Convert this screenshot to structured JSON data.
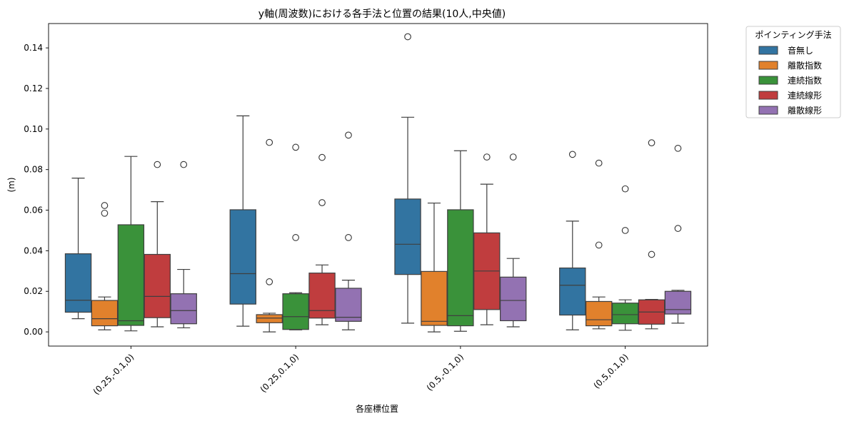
{
  "chart_data": {
    "type": "box",
    "title": "y軸(周波数)における各手法と位置の結果(10人,中央値)",
    "xlabel": "各座標位置",
    "ylabel": "(m)",
    "ylim": [
      -0.007,
      0.152
    ],
    "yticks": [
      0.0,
      0.02,
      0.04,
      0.06,
      0.08,
      0.1,
      0.12,
      0.14
    ],
    "ytick_labels": [
      "0.00",
      "0.02",
      "0.04",
      "0.06",
      "0.08",
      "0.10",
      "0.12",
      "0.14"
    ],
    "categories": [
      "(0.25,-0.1,0)",
      "(0.25,0.1,0)",
      "(0.5,-0.1,0)",
      "(0.5,0.1,0)"
    ],
    "legend": {
      "title": "ポインティング手法",
      "position": "outside-top-right"
    },
    "series": [
      {
        "name": "音無し",
        "color": "#3274a1",
        "boxes": [
          {
            "whislo": 0.0065,
            "q1": 0.0097,
            "med": 0.0156,
            "q3": 0.0385,
            "whishi": 0.0758,
            "fliers": []
          },
          {
            "whislo": 0.0028,
            "q1": 0.0137,
            "med": 0.0287,
            "q3": 0.0602,
            "whishi": 0.1065,
            "fliers": []
          },
          {
            "whislo": 0.0043,
            "q1": 0.0283,
            "med": 0.0432,
            "q3": 0.0655,
            "whishi": 0.1058,
            "fliers": [
              0.1455
            ]
          },
          {
            "whislo": 0.001,
            "q1": 0.0083,
            "med": 0.023,
            "q3": 0.0315,
            "whishi": 0.0546,
            "fliers": [
              0.0875
            ]
          }
        ]
      },
      {
        "name": "離散指数",
        "color": "#e1812c",
        "boxes": [
          {
            "whislo": 0.001,
            "q1": 0.003,
            "med": 0.0065,
            "q3": 0.0155,
            "whishi": 0.0172,
            "fliers": [
              0.0585,
              0.0623
            ]
          },
          {
            "whislo": 0.0,
            "q1": 0.0045,
            "med": 0.0068,
            "q3": 0.0085,
            "whishi": 0.0092,
            "fliers": [
              0.0247,
              0.0934
            ]
          },
          {
            "whislo": 0.0,
            "q1": 0.0032,
            "med": 0.0052,
            "q3": 0.0298,
            "whishi": 0.0635,
            "fliers": []
          },
          {
            "whislo": 0.0015,
            "q1": 0.003,
            "med": 0.006,
            "q3": 0.015,
            "whishi": 0.0172,
            "fliers": [
              0.0428,
              0.0832
            ]
          }
        ]
      },
      {
        "name": "連続指数",
        "color": "#3a923a",
        "boxes": [
          {
            "whislo": 0.0005,
            "q1": 0.0032,
            "med": 0.0055,
            "q3": 0.0528,
            "whishi": 0.0865,
            "fliers": []
          },
          {
            "whislo": 0.001,
            "q1": 0.0012,
            "med": 0.0075,
            "q3": 0.0188,
            "whishi": 0.0193,
            "fliers": [
              0.0465,
              0.091
            ]
          },
          {
            "whislo": 0.0003,
            "q1": 0.003,
            "med": 0.008,
            "q3": 0.0602,
            "whishi": 0.0893,
            "fliers": []
          },
          {
            "whislo": 0.0008,
            "q1": 0.004,
            "med": 0.0085,
            "q3": 0.0142,
            "whishi": 0.0158,
            "fliers": [
              0.05,
              0.0705
            ]
          }
        ]
      },
      {
        "name": "連続線形",
        "color": "#c03d3e",
        "boxes": [
          {
            "whislo": 0.0025,
            "q1": 0.007,
            "med": 0.0175,
            "q3": 0.0382,
            "whishi": 0.0642,
            "fliers": [
              0.0825
            ]
          },
          {
            "whislo": 0.0035,
            "q1": 0.0068,
            "med": 0.0105,
            "q3": 0.029,
            "whishi": 0.033,
            "fliers": [
              0.0637,
              0.086
            ]
          },
          {
            "whislo": 0.0035,
            "q1": 0.011,
            "med": 0.03,
            "q3": 0.0488,
            "whishi": 0.0728,
            "fliers": [
              0.0862
            ]
          },
          {
            "whislo": 0.0015,
            "q1": 0.0038,
            "med": 0.0098,
            "q3": 0.0158,
            "whishi": 0.016,
            "fliers": [
              0.0382,
              0.0932
            ]
          }
        ]
      },
      {
        "name": "離散線形",
        "color": "#9372b2",
        "boxes": [
          {
            "whislo": 0.002,
            "q1": 0.004,
            "med": 0.0105,
            "q3": 0.0188,
            "whishi": 0.0308,
            "fliers": [
              0.0825
            ]
          },
          {
            "whislo": 0.001,
            "q1": 0.0052,
            "med": 0.0072,
            "q3": 0.0215,
            "whishi": 0.0255,
            "fliers": [
              0.0465,
              0.097
            ]
          },
          {
            "whislo": 0.0025,
            "q1": 0.0055,
            "med": 0.0155,
            "q3": 0.027,
            "whishi": 0.0362,
            "fliers": [
              0.0862
            ]
          },
          {
            "whislo": 0.0043,
            "q1": 0.0088,
            "med": 0.011,
            "q3": 0.02,
            "whishi": 0.0205,
            "fliers": [
              0.051,
              0.0905
            ]
          }
        ]
      }
    ]
  }
}
